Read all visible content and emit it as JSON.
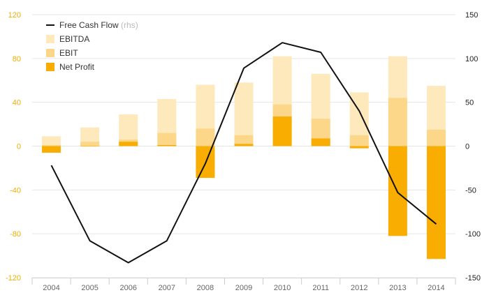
{
  "chart_data": {
    "type": "bar",
    "categories": [
      "2004",
      "2005",
      "2006",
      "2007",
      "2008",
      "2009",
      "2010",
      "2011",
      "2012",
      "2013",
      "2014"
    ],
    "series": [
      {
        "name": "EBITDA",
        "kind": "bar",
        "axis": "left",
        "color": "#fde9bb",
        "values": [
          9,
          17,
          29,
          43,
          56,
          58,
          82,
          66,
          49,
          82,
          55
        ]
      },
      {
        "name": "EBIT",
        "kind": "bar",
        "axis": "left",
        "color": "#fcd789",
        "values": [
          1,
          4,
          6,
          12,
          16,
          10,
          38,
          25,
          10,
          44,
          15
        ]
      },
      {
        "name": "Net Profit",
        "kind": "bar",
        "axis": "left",
        "color": "#f8ad00",
        "values": [
          -6,
          0,
          4,
          1,
          -29,
          2,
          27,
          7,
          -2,
          -82,
          -103
        ]
      },
      {
        "name": "Free Cash Flow",
        "note": "(rhs)",
        "kind": "line",
        "axis": "right",
        "color": "#111111",
        "values": [
          -22,
          -108,
          -133,
          -108,
          -20,
          89,
          118,
          107,
          40,
          -53,
          -89
        ]
      }
    ],
    "y_left": {
      "ylim": [
        -120,
        120
      ],
      "ticks": [
        120,
        80,
        40,
        0,
        -40,
        -80,
        -120
      ]
    },
    "y_right": {
      "ylim": [
        -150,
        150
      ],
      "ticks": [
        150,
        100,
        50,
        0,
        -50,
        -100,
        -150
      ]
    },
    "grid": true,
    "legend": "top-left"
  }
}
